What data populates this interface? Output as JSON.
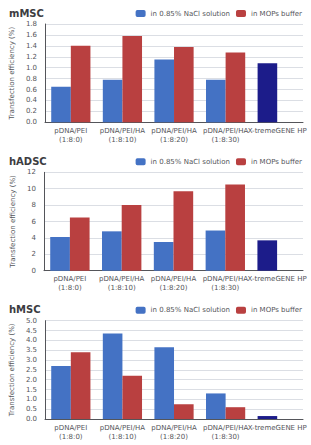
{
  "chart_data": [
    {
      "type": "bar",
      "title": "mMSC",
      "ylabel": "Transfection efficiency (%)",
      "categories": [
        "pDNA/PEI\n(1:8:0)",
        "pDNA/PEI/HA\n(1:8:10)",
        "pDNA/PEI/HA\n(1:8:20)",
        "pDNA/PEI/HA\n(1:8:30)",
        "X-tremeGENE HP"
      ],
      "series": [
        {
          "name": "in 0.85% NaCl solution",
          "color": "#4472C4",
          "colors": [
            "#4472C4",
            "#4472C4",
            "#4472C4",
            "#4472C4",
            "#1C1C8A"
          ],
          "values": [
            0.65,
            0.78,
            1.15,
            0.78,
            1.08
          ]
        },
        {
          "name": "in MOPs buffer",
          "color": "#B94040",
          "values": [
            1.4,
            1.58,
            1.38,
            1.28,
            null
          ]
        }
      ],
      "ylim": [
        0,
        1.8
      ],
      "yticks": [
        {
          "value": 0,
          "label": "0.0"
        },
        0.2,
        0.4,
        0.6,
        0.8,
        {
          "value": 1.0,
          "label": "1.0"
        },
        1.2,
        1.4,
        1.6,
        1.8
      ],
      "grid": true,
      "legend": "upper right"
    },
    {
      "type": "bar",
      "title": "hADSC",
      "ylabel": "Transfection efficiency (%)",
      "categories": [
        "pDNA/PEI\n(1:8:0)",
        "pDNA/PEI/HA\n(1:8:10)",
        "pDNA/PEI/HA\n(1:8:20)",
        "pDNA/PEI/HA\n(1:8:30)",
        "X-tremeGENE HP"
      ],
      "series": [
        {
          "name": "in 0.85% NaCl solution",
          "color": "#4472C4",
          "colors": [
            "#4472C4",
            "#4472C4",
            "#4472C4",
            "#4472C4",
            "#1C1C8A"
          ],
          "values": [
            4.1,
            4.8,
            3.5,
            4.9,
            3.7
          ]
        },
        {
          "name": "in MOPs buffer",
          "color": "#B94040",
          "values": [
            6.5,
            8.0,
            9.7,
            10.5,
            null
          ]
        }
      ],
      "ylim": [
        0,
        12
      ],
      "yticks": [
        0,
        2,
        4,
        6,
        8,
        10,
        12
      ],
      "grid": true,
      "legend": "upper right"
    },
    {
      "type": "bar",
      "title": "hMSC",
      "ylabel": "Transfection efficiency (%)",
      "categories": [
        "pDNA/PEI\n(1:8:0)",
        "pDNA/PEI/HA\n(1:8:10)",
        "pDNA/PEI/HA\n(1:8:20)",
        "pDNA/PEI/HA\n(1:8:30)",
        "X-tremeGENE HP"
      ],
      "series": [
        {
          "name": "in 0.85% NaCl solution",
          "color": "#4472C4",
          "colors": [
            "#4472C4",
            "#4472C4",
            "#4472C4",
            "#4472C4",
            "#1C1C8A"
          ],
          "values": [
            2.7,
            4.35,
            3.65,
            1.3,
            0.15
          ]
        },
        {
          "name": "in MOPs buffer",
          "color": "#B94040",
          "values": [
            3.4,
            2.2,
            0.75,
            0.6,
            null
          ]
        }
      ],
      "ylim": [
        0,
        5
      ],
      "yticks": [
        {
          "value": 0,
          "label": "0.0"
        },
        0.5,
        {
          "value": 1.0,
          "label": "1.0"
        },
        1.5,
        {
          "value": 2.0,
          "label": "2.0"
        },
        2.5,
        {
          "value": 3.0,
          "label": "3.0"
        },
        3.5,
        {
          "value": 4.0,
          "label": "4.0"
        },
        4.5,
        {
          "value": 5.0,
          "label": "5.0"
        }
      ],
      "grid": true,
      "legend": "upper right"
    }
  ]
}
